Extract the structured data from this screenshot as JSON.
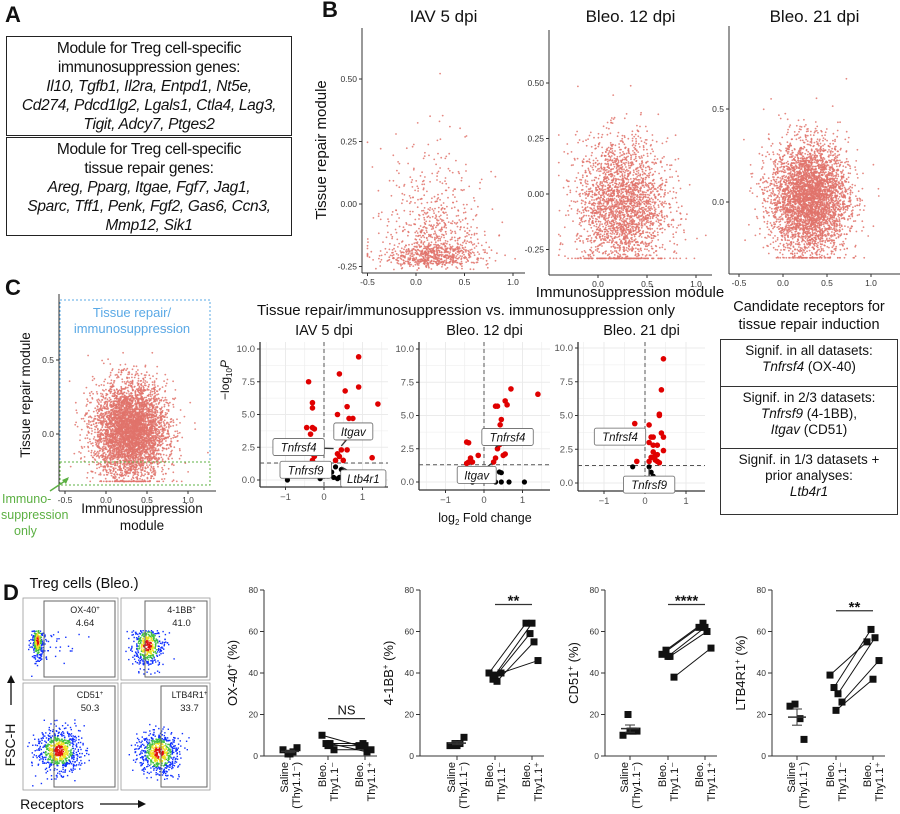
{
  "panels": {
    "A": "A",
    "B": "B",
    "C": "C",
    "D": "D"
  },
  "panelA": {
    "box1": {
      "title1": "Module for Treg cell-specific",
      "title2": "immunosuppression genes:",
      "line1": "Il10, Tgfb1, Il2ra, Entpd1, Nt5e,",
      "line2": "Cd274, Pdcd1lg2, Lgals1, Ctla4, Lag3,",
      "line3": "Tigit, Adcy7, Ptges2"
    },
    "box2": {
      "title1": "Module for Treg cell-specific",
      "title2": "tissue repair genes:",
      "line1": "Areg, Pparg, Itgae, Fgf7, Jag1,",
      "line2": "Sparc, Tff1, Penk, Fgf2, Gas6, Ccn3,",
      "line3": "Mmp12, Sik1"
    }
  },
  "panelC": {
    "gate_upper_label1": "Tissue repair/",
    "gate_upper_label2": "immunosuppression",
    "gate_lower_label1": "Immuno-",
    "gate_lower_label2": "suppression",
    "gate_lower_label3": "only",
    "xlabel1": "Immunosuppression",
    "xlabel2": "module",
    "ylabel": "Tissue repair module",
    "gate_upper_color": "#5aa9e6",
    "gate_lower_color": "#5cb043",
    "volcano_title": "Tissue repair/immunosuppression vs. immunosuppression only",
    "volcano_ylabel": "−log",
    "volcano_ylabel_sub": "10",
    "volcano_ylabel_p": "P",
    "volcano_xlabel": "log",
    "volcano_xlabel_sub": "2",
    "volcano_xlabel_rest": " Fold change",
    "receptors_title1": "Candidate receptors for",
    "receptors_title2": "tissue repair induction",
    "receptor_boxes": [
      {
        "head": "Signif. in all datasets:",
        "gene1": "Tnfrsf4",
        "rest1": " (OX-40)"
      },
      {
        "head": "Signif. in 2/3 datasets:",
        "gene1": "Tnfrsf9",
        "rest1": " (4-1BB),",
        "gene2": "Itgav",
        "rest2": " (CD51)"
      },
      {
        "head": "Signif. in 1/3 datasets +",
        "head2": "prior analyses:",
        "gene1": "Ltb4r1"
      }
    ]
  },
  "panelD": {
    "flow_title": "Treg cells (Bleo.)",
    "flow_ylabel": "FSC-H",
    "flow_xlabel": "Receptors",
    "gates": [
      {
        "name": "OX-40",
        "sup": "+",
        "value": "4.64"
      },
      {
        "name": "4-1BB",
        "sup": "+",
        "value": "41.0"
      },
      {
        "name": "CD51",
        "sup": "+",
        "value": "50.3"
      },
      {
        "name": "LTB4R1",
        "sup": "+",
        "value": "33.7"
      }
    ]
  },
  "chart_data": [
    {
      "id": "B1",
      "type": "scatter",
      "title": "IAV 5 dpi",
      "xlabel": "Immunosuppression module",
      "ylabel": "Tissue repair module",
      "xticks": [
        "-0.5",
        "0.0",
        "0.5",
        "1.0"
      ],
      "yticks": [
        "-0.25",
        "0.00",
        "0.25",
        "0.50"
      ],
      "xlim": [
        -0.5,
        1.05
      ],
      "ylim": [
        -0.25,
        0.65
      ],
      "color": "#e0736b"
    },
    {
      "id": "B2",
      "type": "scatter",
      "title": "Bleo. 12 dpi",
      "xticks": [
        "0.0",
        "0.5",
        "1.0"
      ],
      "yticks": [
        "-0.25",
        "0.00",
        "0.25",
        "0.50"
      ],
      "xlim": [
        -0.4,
        1.1
      ],
      "ylim": [
        -0.3,
        0.68
      ],
      "color": "#e0736b"
    },
    {
      "id": "B3",
      "type": "scatter",
      "title": "Bleo. 21 dpi",
      "xticks": [
        "-0.5",
        "0.0",
        "0.5",
        "1.0"
      ],
      "yticks": [
        "0.0",
        "0.5"
      ],
      "xlim": [
        -0.5,
        1.3
      ],
      "ylim": [
        -0.33,
        0.92
      ],
      "color": "#e0736b"
    },
    {
      "id": "C1",
      "type": "scatter",
      "xticks": [
        "-0.5",
        "0.0",
        "0.5",
        "1.0"
      ],
      "yticks": [
        "0.0",
        "0.5"
      ],
      "xlim": [
        -0.5,
        1.25
      ],
      "ylim": [
        -0.35,
        0.85
      ],
      "color": "#e0736b",
      "gate_threshold_y": -0.19
    },
    {
      "id": "V1",
      "type": "scatter",
      "subtype": "volcano",
      "title": "IAV 5 dpi",
      "xticks": [
        "-1",
        "0",
        "1"
      ],
      "yticks": [
        "0.0",
        "2.5",
        "5.0",
        "7.5",
        "10.0"
      ],
      "p_threshold": 1.3,
      "significant": [
        [
          -0.4,
          7.5
        ],
        [
          -0.3,
          5.9
        ],
        [
          -0.3,
          5.5
        ],
        [
          -0.45,
          4.0
        ],
        [
          -0.3,
          4.0
        ],
        [
          -0.25,
          3.9
        ],
        [
          -0.35,
          3.5
        ],
        [
          -0.3,
          2.0
        ],
        [
          -0.25,
          1.8
        ],
        [
          -0.3,
          1.5
        ],
        [
          0.35,
          5.0
        ],
        [
          0.4,
          8.1
        ],
        [
          0.55,
          6.8
        ],
        [
          0.6,
          5.6
        ],
        [
          0.65,
          4.7
        ],
        [
          0.75,
          4.7
        ],
        [
          0.9,
          9.4
        ],
        [
          0.9,
          7.1
        ],
        [
          1.4,
          5.8
        ],
        [
          1.25,
          1.7
        ],
        [
          0.35,
          3.7
        ],
        [
          0.45,
          2.3
        ],
        [
          0.35,
          2.0
        ],
        [
          0.4,
          1.8
        ],
        [
          0.5,
          1.5
        ],
        [
          0.6,
          2.3
        ],
        [
          0.3,
          1.5
        ],
        [
          0.55,
          3.2
        ]
      ],
      "nonsignificant": [
        [
          -0.95,
          0
        ],
        [
          -0.2,
          0.5
        ],
        [
          0.1,
          0.3
        ],
        [
          0.2,
          0.6
        ],
        [
          0.3,
          1.0
        ],
        [
          0.4,
          0.2
        ],
        [
          0.45,
          0.8
        ],
        [
          0.5,
          0.1
        ],
        [
          -0.1,
          0.1
        ],
        [
          0.6,
          0.5
        ],
        [
          0.35,
          0.1
        ],
        [
          0.25,
          0.2
        ]
      ],
      "labels": [
        {
          "text": "Tnfrsf4",
          "x": 0.25,
          "y": 2.4
        },
        {
          "text": "Itgav",
          "x": 0.45,
          "y": 2.6
        },
        {
          "text": "Tnfrsf9",
          "x": 0.2,
          "y": 1.2
        },
        {
          "text": "Ltb4r1",
          "x": 0.45,
          "y": 1.0
        }
      ]
    },
    {
      "id": "V2",
      "type": "scatter",
      "subtype": "volcano",
      "title": "Bleo. 12 dpi",
      "xlabel": "log2 Fold change",
      "xticks": [
        "-1",
        "0",
        "1"
      ],
      "yticks": [
        "0.0",
        "2.5",
        "5.0",
        "7.5",
        "10.0"
      ],
      "p_threshold": 1.3,
      "significant": [
        [
          -0.45,
          3.0
        ],
        [
          -0.4,
          2.95
        ],
        [
          -0.15,
          2.0
        ],
        [
          -0.35,
          1.8
        ],
        [
          -0.4,
          1.5
        ],
        [
          -0.3,
          1.5
        ],
        [
          -0.45,
          1.4
        ],
        [
          0.3,
          5.7
        ],
        [
          0.35,
          5.7
        ],
        [
          0.55,
          6.1
        ],
        [
          0.6,
          5.8
        ],
        [
          0.7,
          7.0
        ],
        [
          1.4,
          6.6
        ],
        [
          0.45,
          4.7
        ],
        [
          0.42,
          4.3
        ],
        [
          0.45,
          3.8
        ],
        [
          0.35,
          2.5
        ],
        [
          0.5,
          2.0
        ],
        [
          0.55,
          2.1
        ],
        [
          0.3,
          1.8
        ],
        [
          0.25,
          1.5
        ],
        [
          0.4,
          2.8
        ]
      ],
      "nonsignificant": [
        [
          0.45,
          0.7
        ],
        [
          0.4,
          0.75
        ],
        [
          0.3,
          0
        ],
        [
          0.45,
          0
        ],
        [
          0.65,
          0
        ],
        [
          1.05,
          0
        ],
        [
          -0.3,
          0
        ],
        [
          0.1,
          0.3
        ],
        [
          0.2,
          0.1
        ]
      ],
      "labels": [
        {
          "text": "Tnfrsf4",
          "x": 0.3,
          "y": 2.6
        },
        {
          "text": "Itgav",
          "x": 0.2,
          "y": 1.4
        }
      ]
    },
    {
      "id": "V3",
      "type": "scatter",
      "subtype": "volcano",
      "title": "Bleo. 21 dpi",
      "xticks": [
        "-1",
        "0",
        "1"
      ],
      "yticks": [
        "0.0",
        "2.5",
        "5.0",
        "7.5",
        "10.0"
      ],
      "p_threshold": 1.3,
      "significant": [
        [
          0.45,
          9.2
        ],
        [
          0.4,
          6.9
        ],
        [
          0.35,
          5.1
        ],
        [
          0.35,
          5.0
        ],
        [
          -0.25,
          4.4
        ],
        [
          0.1,
          4.3
        ],
        [
          -0.25,
          3.5
        ],
        [
          -0.3,
          3.2
        ],
        [
          0.15,
          3.4
        ],
        [
          0.2,
          3.4
        ],
        [
          0.4,
          3.7
        ],
        [
          0.45,
          3.4
        ],
        [
          0.1,
          3.0
        ],
        [
          0.2,
          2.8
        ],
        [
          0.3,
          2.8
        ],
        [
          0.45,
          2.4
        ],
        [
          0.2,
          2.3
        ],
        [
          0.3,
          2.1
        ],
        [
          0.15,
          1.9
        ],
        [
          0.25,
          2.0
        ],
        [
          0.1,
          1.6
        ],
        [
          0.3,
          1.6
        ],
        [
          0.35,
          1.5
        ],
        [
          -0.2,
          1.6
        ],
        [
          0.25,
          1.7
        ]
      ],
      "nonsignificant": [
        [
          -0.3,
          1.2
        ],
        [
          0.1,
          1.2
        ],
        [
          0.15,
          0.8
        ],
        [
          0.05,
          0.3
        ],
        [
          0.2,
          0.5
        ]
      ],
      "labels": [
        {
          "text": "Tnfrsf4",
          "x": 0.0,
          "y": 3.1
        },
        {
          "text": "Tnfrsf9",
          "x": 0.1,
          "y": 1.1
        }
      ]
    },
    {
      "id": "D1",
      "type": "scatter",
      "subtype": "paired-dot",
      "ylabel": "OX-40",
      "ylabel_sup": "+",
      "ylabel_unit": " (%)",
      "ylim": [
        0,
        80
      ],
      "yticks": [
        "0",
        "20",
        "40",
        "60",
        "80"
      ],
      "categories": [
        [
          "Saline",
          "(Thy1.1⁻)"
        ],
        [
          "Bleo.",
          "Thy1.1⁻"
        ],
        [
          "Bleo.",
          "Thy1.1⁺"
        ]
      ],
      "saline": [
        3,
        1,
        2,
        4,
        1
      ],
      "bleo_minus": [
        10,
        6,
        6,
        3,
        5
      ],
      "bleo_plus": [
        5,
        6,
        2,
        3,
        5
      ],
      "significance": "NS"
    },
    {
      "id": "D2",
      "type": "scatter",
      "subtype": "paired-dot",
      "ylabel": "4-1BB",
      "ylabel_sup": "+",
      "ylabel_unit": " (%)",
      "ylim": [
        0,
        80
      ],
      "yticks": [
        "0",
        "20",
        "40",
        "60",
        "80"
      ],
      "categories": [
        [
          "Saline",
          "(Thy1.1⁻)"
        ],
        [
          "Bleo.",
          "Thy1.1⁻"
        ],
        [
          "Bleo.",
          "Thy1.1⁺"
        ]
      ],
      "saline": [
        5,
        6,
        6,
        9,
        5
      ],
      "bleo_minus": [
        40,
        37,
        36,
        40,
        39
      ],
      "bleo_plus": [
        64,
        59,
        55,
        46,
        64
      ],
      "significance": "**"
    },
    {
      "id": "D3",
      "type": "scatter",
      "subtype": "paired-dot",
      "ylabel": "CD51",
      "ylabel_sup": "+",
      "ylabel_unit": " (%)",
      "ylim": [
        0,
        80
      ],
      "yticks": [
        "0",
        "20",
        "40",
        "60",
        "80"
      ],
      "categories": [
        [
          "Saline",
          "(Thy1.1⁻)"
        ],
        [
          "Bleo.",
          "Thy1.1⁻"
        ],
        [
          "Bleo.",
          "Thy1.1⁺"
        ]
      ],
      "saline": [
        10,
        20,
        12,
        12,
        12
      ],
      "bleo_minus": [
        49,
        51,
        48,
        38,
        48
      ],
      "bleo_plus": [
        62,
        64,
        60,
        52,
        62
      ],
      "significance": "****"
    },
    {
      "id": "D4",
      "type": "scatter",
      "subtype": "paired-dot",
      "ylabel": "LTB4R1",
      "ylabel_sup": "+",
      "ylabel_unit": " (%)",
      "ylim": [
        0,
        80
      ],
      "yticks": [
        "0",
        "20",
        "40",
        "60",
        "80"
      ],
      "categories": [
        [
          "Saline",
          "(Thy1.1⁻)"
        ],
        [
          "Bleo.",
          "Thy1.1⁻"
        ],
        [
          "Bleo.",
          "Thy1.1⁺"
        ]
      ],
      "saline": [
        24,
        25,
        18,
        8
      ],
      "bleo_minus": [
        39,
        33,
        30,
        26,
        22
      ],
      "bleo_plus": [
        55,
        61,
        57,
        46,
        37
      ],
      "significance": "**"
    }
  ]
}
